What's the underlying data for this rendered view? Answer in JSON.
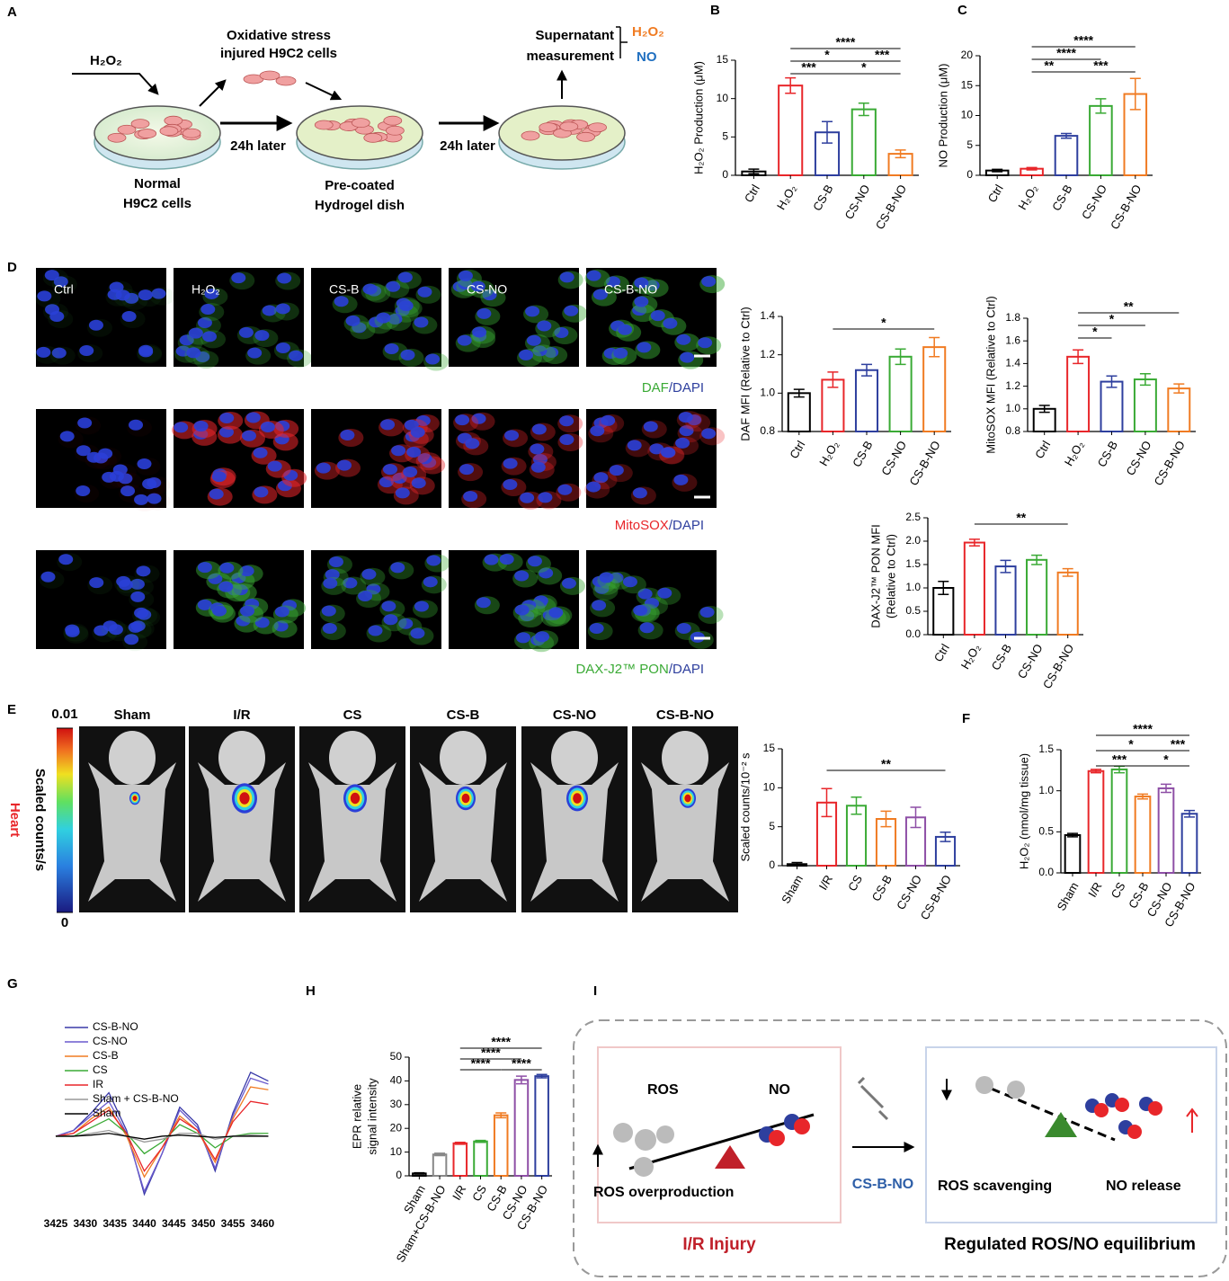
{
  "panel_letters": [
    "A",
    "B",
    "C",
    "D",
    "E",
    "F",
    "G",
    "H",
    "I"
  ],
  "panel_a": {
    "h2o2": "H₂O₂",
    "stress": [
      "Oxidative stress",
      "injured H9C2 cells"
    ],
    "later": [
      "24h later",
      "24h later"
    ],
    "normal": [
      "Normal",
      "H9C2 cells"
    ],
    "precoated": [
      "Pre-coated",
      "Hydrogel dish"
    ],
    "supernatant": [
      "Supernatant",
      "measurement"
    ],
    "measured": [
      "H₂O₂",
      "NO"
    ]
  },
  "panel_d": {
    "image_labels": [
      "Ctrl",
      "H₂O₂",
      "CS-B",
      "CS-NO",
      "CS-B-NO"
    ],
    "stains": [
      [
        "DAF",
        "/DAPI"
      ],
      [
        "MitoSOX",
        "/DAPI"
      ],
      [
        "DAX-J2™ PON",
        "/DAPI"
      ]
    ]
  },
  "panel_e": {
    "organ": "Heart",
    "colorbar": {
      "label": "Scaled counts/s",
      "ticks": [
        0,
        0.01
      ]
    },
    "image_labels": [
      "Sham",
      "I/R",
      "CS",
      "CS-B",
      "CS-NO",
      "CS-B-NO"
    ]
  },
  "panel_i": {
    "left": {
      "ros": "ROS",
      "no": "NO",
      "caption": "ROS overproduction",
      "title": "I/R Injury"
    },
    "arrow": "CS-B-NO",
    "right": {
      "ros": "ROS scavenging",
      "no": "NO release",
      "title": "Regulated ROS/NO equilibrium"
    }
  },
  "chart_data": [
    {
      "type": "bar",
      "ylabel": [
        "H₂O₂ Production (μM)"
      ],
      "categories": [
        "Ctrl",
        "H₂O₂",
        "CS-B",
        "CS-NO",
        "CS-B-NO"
      ],
      "values": [
        0.5,
        11.7,
        5.6,
        8.6,
        2.8
      ],
      "errors": [
        0.3,
        1.0,
        1.4,
        0.8,
        0.5
      ],
      "colors": [
        "#000000",
        "#e8262a",
        "#2e3f9e",
        "#3aaa35",
        "#f07b22"
      ],
      "ylim": [
        0,
        15
      ],
      "yticks": [
        0,
        5,
        10,
        15
      ],
      "annotations": [
        "****",
        "*",
        "***",
        "***",
        "*"
      ]
    },
    {
      "type": "bar",
      "ylabel": [
        "NO Production (μM)"
      ],
      "categories": [
        "Ctrl",
        "H₂O₂",
        "CS-B",
        "CS-NO",
        "CS-B-NO"
      ],
      "values": [
        0.8,
        1.1,
        6.6,
        11.6,
        13.6
      ],
      "errors": [
        0.2,
        0.2,
        0.4,
        1.2,
        2.6
      ],
      "colors": [
        "#000000",
        "#e8262a",
        "#2e3f9e",
        "#3aaa35",
        "#f07b22"
      ],
      "ylim": [
        0,
        20
      ],
      "yticks": [
        0,
        5,
        10,
        15,
        20
      ],
      "annotations": [
        "****",
        "****",
        "**",
        "***"
      ]
    },
    {
      "type": "bar",
      "ylabel": [
        "DAF MFI (Relative to Ctrl)"
      ],
      "categories": [
        "Ctrl",
        "H₂O₂",
        "CS-B",
        "CS-NO",
        "CS-B-NO"
      ],
      "values": [
        1.0,
        1.07,
        1.12,
        1.19,
        1.24
      ],
      "errors": [
        0.02,
        0.04,
        0.03,
        0.04,
        0.05
      ],
      "colors": [
        "#000000",
        "#e8262a",
        "#2e3f9e",
        "#3aaa35",
        "#f07b22"
      ],
      "ylim": [
        0.8,
        1.4
      ],
      "yticks": [
        0.8,
        {
          "value": 1,
          "label": "1.0"
        },
        1.2,
        1.4
      ],
      "annotations": [
        "*"
      ]
    },
    {
      "type": "bar",
      "ylabel": [
        "MitoSOX MFI (Relative to Ctrl)"
      ],
      "categories": [
        "Ctrl",
        "H₂O₂",
        "CS-B",
        "CS-NO",
        "CS-B-NO"
      ],
      "values": [
        1.0,
        1.46,
        1.24,
        1.26,
        1.18
      ],
      "errors": [
        0.03,
        0.06,
        0.05,
        0.05,
        0.04
      ],
      "colors": [
        "#000000",
        "#e8262a",
        "#2e3f9e",
        "#3aaa35",
        "#f07b22"
      ],
      "ylim": [
        0.8,
        1.8
      ],
      "yticks": [
        0.8,
        {
          "value": 1,
          "label": "1.0"
        },
        1.2,
        1.4,
        1.6,
        1.8
      ],
      "annotations": [
        "**",
        "*",
        "*"
      ]
    },
    {
      "type": "bar",
      "ylabel": [
        "DAX-J2™ PON MFI",
        "(Relative to Ctrl)"
      ],
      "categories": [
        "Ctrl",
        "H₂O₂",
        "CS-B",
        "CS-NO",
        "CS-B-NO"
      ],
      "values": [
        1.0,
        1.97,
        1.46,
        1.6,
        1.33
      ],
      "errors": [
        0.14,
        0.07,
        0.13,
        0.1,
        0.08
      ],
      "colors": [
        "#000000",
        "#e8262a",
        "#2e3f9e",
        "#3aaa35",
        "#f07b22"
      ],
      "ylim": [
        0,
        2.5
      ],
      "yticks": [
        {
          "value": 0,
          "label": "0.0"
        },
        0.5,
        {
          "value": 1,
          "label": "1.0"
        },
        1.5,
        {
          "value": 2,
          "label": "2.0"
        },
        2.5
      ],
      "annotations": [
        "**"
      ]
    },
    {
      "type": "bar",
      "ylabel": [
        "Scaled counts/10⁻² s"
      ],
      "categories": [
        "Sham",
        "I/R",
        "CS",
        "CS-B",
        "CS-NO",
        "CS-B-NO"
      ],
      "values": [
        0.2,
        8.1,
        7.7,
        6.0,
        6.2,
        3.7
      ],
      "errors": [
        0.2,
        1.8,
        1.1,
        1.0,
        1.3,
        0.6
      ],
      "colors": [
        "#000000",
        "#e8262a",
        "#3aaa35",
        "#f07b22",
        "#8e4fa6",
        "#2e3f9e"
      ],
      "ylim": [
        0,
        15
      ],
      "yticks": [
        0,
        5,
        10,
        15
      ],
      "annotations": [
        "**"
      ]
    },
    {
      "type": "bar",
      "ylabel": [
        "H₂O₂ (nmol/mg tissue)"
      ],
      "categories": [
        "Sham",
        "I/R",
        "CS",
        "CS-B",
        "CS-NO",
        "CS-B-NO"
      ],
      "values": [
        0.46,
        1.24,
        1.26,
        0.93,
        1.03,
        0.72
      ],
      "errors": [
        0.02,
        0.02,
        0.04,
        0.03,
        0.05,
        0.04
      ],
      "colors": [
        "#000000",
        "#e8262a",
        "#3aaa35",
        "#f07b22",
        "#8e4fa6",
        "#2e3f9e"
      ],
      "ylim": [
        0,
        1.5
      ],
      "yticks": [
        {
          "value": 0,
          "label": "0.0"
        },
        0.5,
        {
          "value": 1,
          "label": "1.0"
        },
        1.5
      ],
      "annotations": [
        "****",
        "*",
        "***",
        "***",
        "*"
      ]
    },
    {
      "type": "bar",
      "ylabel": [
        "EPR relative",
        "signal intensity"
      ],
      "categories": [
        "Sham",
        "Sham+CS-B-NO",
        "I/R",
        "CS",
        "CS-B",
        "CS-NO",
        "CS-B-NO"
      ],
      "values": [
        1.0,
        9.0,
        13.7,
        14.5,
        25.5,
        40.4,
        42.0
      ],
      "errors": [
        0.3,
        0.5,
        0.4,
        0.4,
        1.0,
        1.6,
        0.7
      ],
      "colors": [
        "#000000",
        "#888888",
        "#e8262a",
        "#3aaa35",
        "#f07b22",
        "#8e4fa6",
        "#2e3f9e"
      ],
      "ylim": [
        0,
        50
      ],
      "yticks": [
        0,
        10,
        20,
        30,
        40,
        50
      ],
      "annotations": [
        "****",
        "****",
        "****",
        "****"
      ]
    },
    {
      "type": "line",
      "x": [
        3425,
        3428,
        3431,
        3434,
        3437,
        3440,
        3443,
        3446,
        3449,
        3452,
        3455,
        3458,
        3461
      ],
      "xlim": [
        3425,
        3462
      ],
      "xticks": [
        3425,
        3430,
        3435,
        3440,
        3445,
        3450,
        3455,
        3460
      ],
      "ylim": [
        -1.1,
        1.3
      ],
      "series": [
        {
          "name": "CS-B-NO",
          "color": "#3a3aa8",
          "values": [
            0,
            0.1,
            0.4,
            0.75,
            0.1,
            -1.0,
            -0.3,
            0.5,
            0.2,
            -0.6,
            0.4,
            1.1,
            0.95
          ]
        },
        {
          "name": "CS-NO",
          "color": "#6a5acd",
          "values": [
            0,
            0.1,
            0.35,
            0.6,
            0.05,
            -0.95,
            -0.3,
            0.45,
            0.15,
            -0.55,
            0.35,
            1.0,
            0.9
          ]
        },
        {
          "name": "CS-B",
          "color": "#f07b22",
          "values": [
            0,
            0.05,
            0.3,
            0.5,
            0,
            -0.7,
            -0.2,
            0.35,
            0.1,
            -0.45,
            0.3,
            0.85,
            0.8
          ]
        },
        {
          "name": "CS",
          "color": "#3aaa35",
          "values": [
            0,
            0,
            0.15,
            0.3,
            0.05,
            -0.3,
            -0.1,
            0.2,
            0.05,
            -0.2,
            0.0,
            0.05,
            0.05
          ]
        },
        {
          "name": "IR",
          "color": "#e8262a",
          "values": [
            0,
            0.05,
            0.25,
            0.45,
            0.05,
            -0.6,
            -0.2,
            0.3,
            0.1,
            -0.4,
            0.25,
            0.6,
            0.55
          ]
        },
        {
          "name": "Sham + CS-B-NO",
          "color": "#999999",
          "values": [
            0,
            0,
            0.05,
            0.1,
            0,
            -0.1,
            -0.05,
            0.05,
            0.05,
            -0.05,
            0,
            0.02,
            0
          ]
        },
        {
          "name": "Sham",
          "color": "#000000",
          "values": [
            0,
            0,
            0.02,
            0.05,
            0,
            -0.05,
            0,
            0.02,
            0,
            -0.02,
            0,
            0,
            0
          ]
        }
      ]
    }
  ]
}
